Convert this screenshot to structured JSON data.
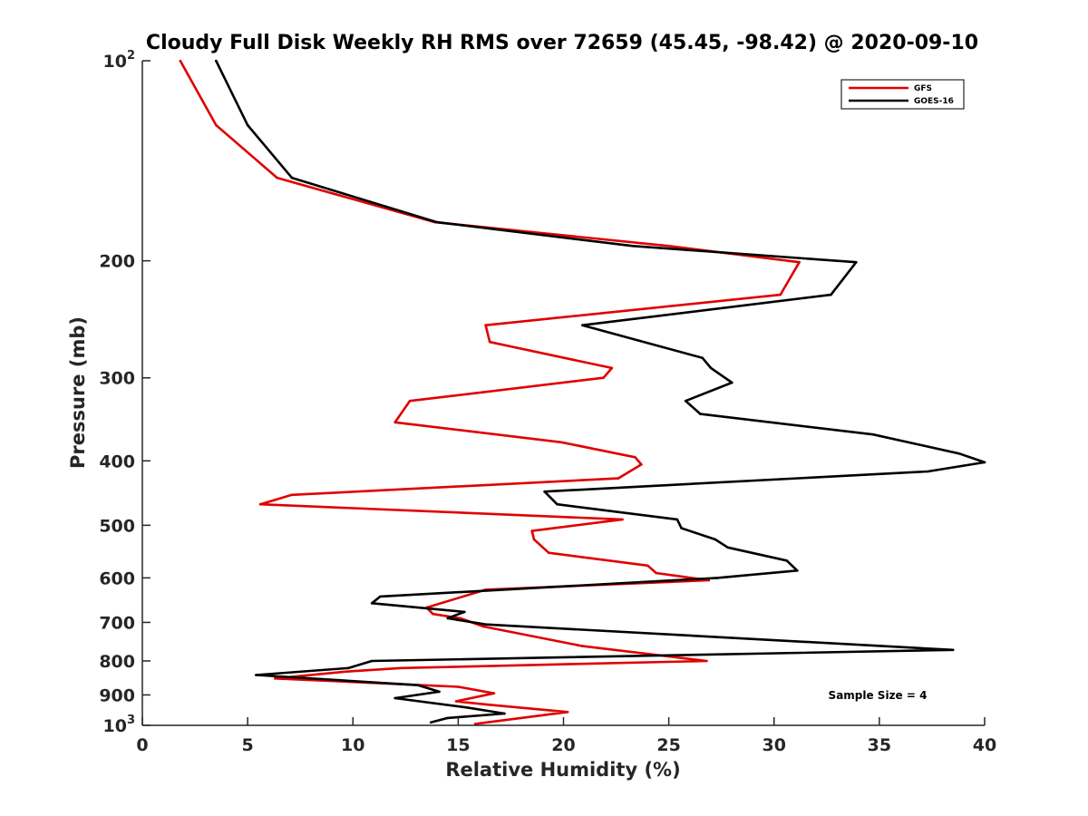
{
  "chart_data": {
    "type": "line",
    "title": "Cloudy Full Disk Weekly RH RMS over 72659 (45.45, -98.42) @ 2020-09-10",
    "xlabel": "Relative Humidity (%)",
    "ylabel": "Pressure (mb)",
    "xlim": [
      0,
      40
    ],
    "ylim": [
      100,
      1000
    ],
    "y_scale": "log",
    "y_reversed": true,
    "grid": false,
    "legend_position": "top-right",
    "x_ticks": [
      "0",
      "5",
      "10",
      "15",
      "20",
      "25",
      "30",
      "35",
      "40"
    ],
    "y_ticks": [
      {
        "value": 100,
        "base": "10",
        "exp": "2"
      },
      {
        "value": 200,
        "label": "200"
      },
      {
        "value": 300,
        "label": "300"
      },
      {
        "value": 400,
        "label": "400"
      },
      {
        "value": 500,
        "label": "500"
      },
      {
        "value": 600,
        "label": "600"
      },
      {
        "value": 700,
        "label": "700"
      },
      {
        "value": 800,
        "label": "800"
      },
      {
        "value": 900,
        "label": "900"
      },
      {
        "value": 1000,
        "base": "10",
        "exp": "3"
      }
    ],
    "annotation": "Sample Size = 4",
    "series": [
      {
        "name": "GFS",
        "color": "#e00000",
        "points": [
          [
            1.8,
            100
          ],
          [
            3.5,
            125
          ],
          [
            6.4,
            150
          ],
          [
            13.9,
            175
          ],
          [
            25.0,
            190
          ],
          [
            31.2,
            201
          ],
          [
            30.3,
            225
          ],
          [
            16.3,
            250
          ],
          [
            16.5,
            265
          ],
          [
            22.3,
            290
          ],
          [
            21.9,
            300
          ],
          [
            12.7,
            325
          ],
          [
            12.0,
            350
          ],
          [
            19.9,
            375
          ],
          [
            23.4,
            395
          ],
          [
            23.7,
            405
          ],
          [
            22.6,
            425
          ],
          [
            7.1,
            450
          ],
          [
            5.6,
            465
          ],
          [
            22.8,
            490
          ],
          [
            18.5,
            510
          ],
          [
            18.6,
            525
          ],
          [
            19.3,
            550
          ],
          [
            24.0,
            575
          ],
          [
            24.4,
            590
          ],
          [
            26.9,
            605
          ],
          [
            16.3,
            625
          ],
          [
            13.5,
            665
          ],
          [
            13.8,
            680
          ],
          [
            15.1,
            690
          ],
          [
            16.2,
            710
          ],
          [
            20.9,
            760
          ],
          [
            26.8,
            800
          ],
          [
            12.3,
            820
          ],
          [
            9.7,
            830
          ],
          [
            6.3,
            850
          ],
          [
            15.0,
            875
          ],
          [
            16.7,
            895
          ],
          [
            14.9,
            920
          ],
          [
            16.3,
            930
          ],
          [
            20.2,
            955
          ],
          [
            15.8,
            995
          ]
        ]
      },
      {
        "name": "GOES-16",
        "color": "#000000",
        "points": [
          [
            3.5,
            100
          ],
          [
            5.0,
            125
          ],
          [
            7.1,
            150
          ],
          [
            14.0,
            175
          ],
          [
            23.3,
            190
          ],
          [
            33.9,
            201
          ],
          [
            32.7,
            225
          ],
          [
            20.9,
            250
          ],
          [
            26.6,
            280
          ],
          [
            27.0,
            290
          ],
          [
            28.0,
            305
          ],
          [
            25.8,
            325
          ],
          [
            26.5,
            340
          ],
          [
            34.7,
            365
          ],
          [
            38.8,
            390
          ],
          [
            40.0,
            402
          ],
          [
            37.3,
            415
          ],
          [
            19.1,
            445
          ],
          [
            19.7,
            465
          ],
          [
            25.4,
            490
          ],
          [
            25.6,
            505
          ],
          [
            27.2,
            525
          ],
          [
            27.8,
            540
          ],
          [
            30.6,
            565
          ],
          [
            31.1,
            585
          ],
          [
            27.3,
            600
          ],
          [
            11.3,
            640
          ],
          [
            10.9,
            655
          ],
          [
            15.3,
            675
          ],
          [
            14.5,
            690
          ],
          [
            16.3,
            705
          ],
          [
            38.5,
            770
          ],
          [
            10.9,
            800
          ],
          [
            9.8,
            820
          ],
          [
            5.4,
            840
          ],
          [
            13.1,
            870
          ],
          [
            14.1,
            890
          ],
          [
            12.0,
            910
          ],
          [
            15.4,
            940
          ],
          [
            17.2,
            960
          ],
          [
            14.5,
            975
          ],
          [
            13.7,
            990
          ]
        ]
      }
    ]
  }
}
